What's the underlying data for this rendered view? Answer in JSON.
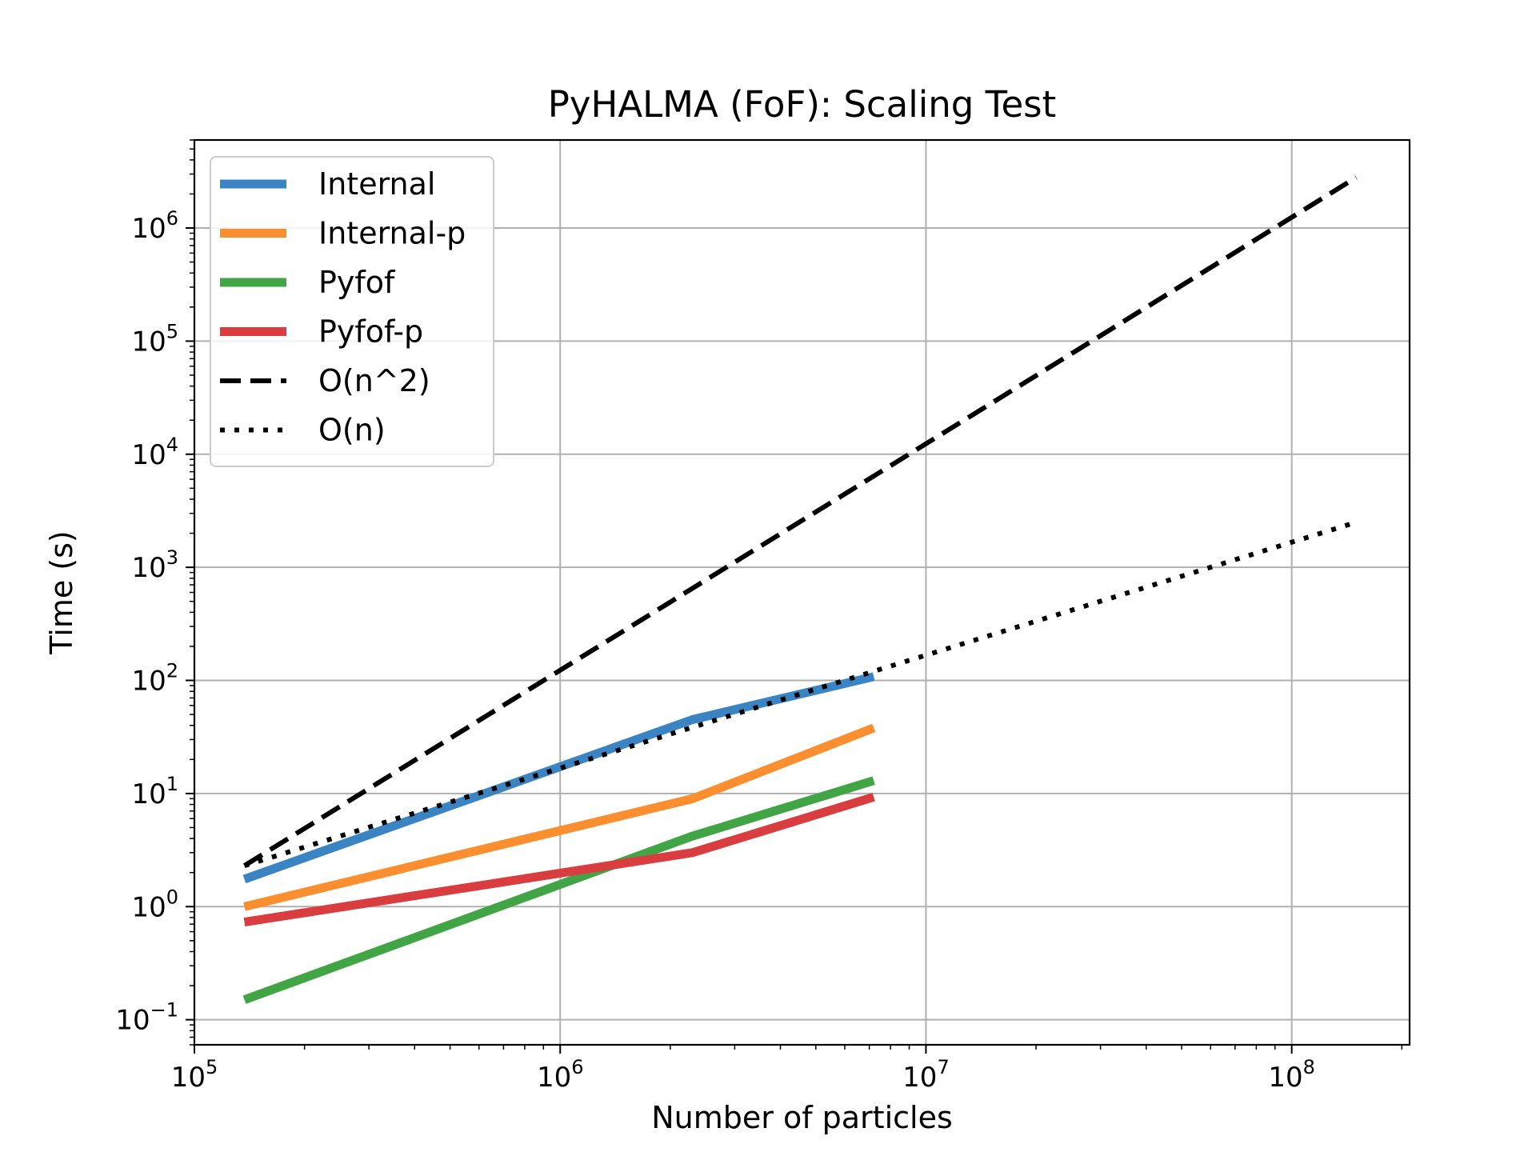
{
  "chart_data": {
    "type": "line",
    "title": "PyHALMA (FoF): Scaling Test",
    "xlabel": "Number of particles",
    "ylabel": "Time (s)",
    "xscale": "log",
    "yscale": "log",
    "xlim": [
      100000,
      210000000
    ],
    "ylim": [
      0.06,
      6000000
    ],
    "grid": true,
    "legend_position": "top-left",
    "x_ticks": [
      {
        "base": "10",
        "exp": "5",
        "value": 100000
      },
      {
        "base": "10",
        "exp": "6",
        "value": 1000000
      },
      {
        "base": "10",
        "exp": "7",
        "value": 10000000
      },
      {
        "base": "10",
        "exp": "8",
        "value": 100000000
      }
    ],
    "y_ticks": [
      {
        "base": "10",
        "exp": "−1",
        "value": 0.1
      },
      {
        "base": "10",
        "exp": "0",
        "value": 1
      },
      {
        "base": "10",
        "exp": "1",
        "value": 10
      },
      {
        "base": "10",
        "exp": "2",
        "value": 100
      },
      {
        "base": "10",
        "exp": "3",
        "value": 1000
      },
      {
        "base": "10",
        "exp": "4",
        "value": 10000
      },
      {
        "base": "10",
        "exp": "5",
        "value": 100000
      },
      {
        "base": "10",
        "exp": "6",
        "value": 1000000
      }
    ],
    "series": [
      {
        "name": "Internal",
        "color": "#3a84c4",
        "style": "solid",
        "x": [
          137000,
          2300000,
          7200000
        ],
        "y": [
          1.75,
          45,
          108
        ]
      },
      {
        "name": "Internal-p",
        "color": "#fb8e2e",
        "style": "solid",
        "x": [
          137000,
          2300000,
          7200000
        ],
        "y": [
          1.0,
          9.0,
          38
        ]
      },
      {
        "name": "Pyfof",
        "color": "#41a546",
        "style": "solid",
        "x": [
          137000,
          2300000,
          7200000
        ],
        "y": [
          0.15,
          4.2,
          13
        ]
      },
      {
        "name": "Pyfof-p",
        "color": "#d93d3f",
        "style": "solid",
        "x": [
          137000,
          2300000,
          7200000
        ],
        "y": [
          0.73,
          3.0,
          9.3
        ]
      },
      {
        "name": "O(n^2)",
        "color": "#000000",
        "style": "dashed",
        "x": [
          137000,
          150000000
        ],
        "y": [
          2.3,
          2800000
        ]
      },
      {
        "name": "O(n)",
        "color": "#000000",
        "style": "dotted",
        "x": [
          137000,
          150000000
        ],
        "y": [
          2.3,
          2500
        ]
      }
    ]
  }
}
